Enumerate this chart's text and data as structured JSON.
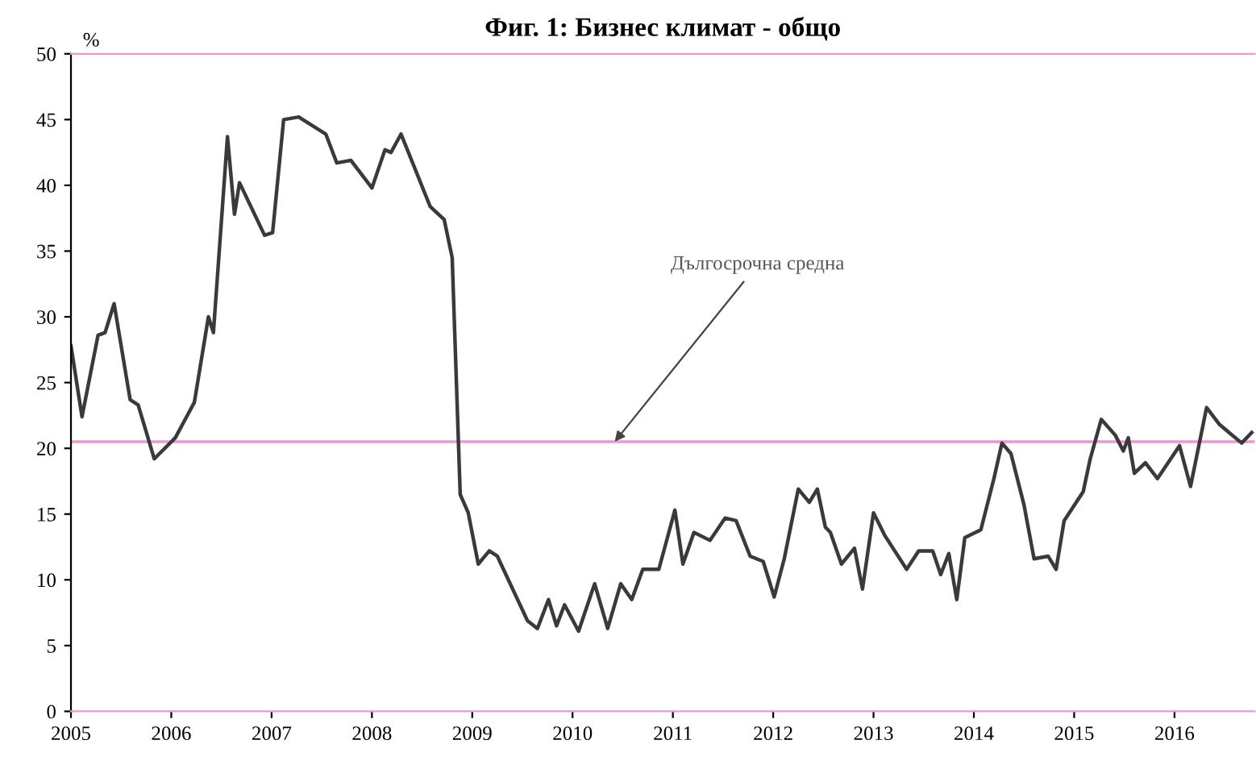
{
  "chart_data": {
    "type": "line",
    "title": "Фиг. 1: Бизнес климат - общо",
    "ylabel": "%",
    "x": [
      2005.0,
      2005.11,
      2005.27,
      2005.34,
      2005.43,
      2005.59,
      2005.67,
      2005.83,
      2006.04,
      2006.23,
      2006.37,
      2006.42,
      2006.56,
      2006.63,
      2006.68,
      2006.93,
      2007.01,
      2007.12,
      2007.27,
      2007.54,
      2007.65,
      2007.79,
      2008.0,
      2008.13,
      2008.19,
      2008.29,
      2008.58,
      2008.72,
      2008.8,
      2008.88,
      2008.96,
      2009.06,
      2009.17,
      2009.25,
      2009.55,
      2009.65,
      2009.76,
      2009.84,
      2009.92,
      2010.06,
      2010.22,
      2010.35,
      2010.48,
      2010.59,
      2010.7,
      2010.86,
      2011.02,
      2011.1,
      2011.21,
      2011.37,
      2011.52,
      2011.63,
      2011.77,
      2011.9,
      2012.01,
      2012.11,
      2012.25,
      2012.36,
      2012.44,
      2012.52,
      2012.57,
      2012.68,
      2012.81,
      2012.89,
      2013.0,
      2013.11,
      2013.33,
      2013.45,
      2013.59,
      2013.67,
      2013.75,
      2013.83,
      2013.91,
      2014.07,
      2014.2,
      2014.28,
      2014.37,
      2014.5,
      2014.6,
      2014.74,
      2014.82,
      2014.9,
      2015.09,
      2015.16,
      2015.27,
      2015.41,
      2015.49,
      2015.54,
      2015.6,
      2015.71,
      2015.83,
      2016.05,
      2016.16,
      2016.32,
      2016.45,
      2016.67,
      2016.77
    ],
    "series": [
      {
        "color": "#3a3a3a",
        "values": [
          27.8,
          22.4,
          28.6,
          28.8,
          31.0,
          23.7,
          23.3,
          19.2,
          20.8,
          23.5,
          30.0,
          28.8,
          43.7,
          37.8,
          40.2,
          36.2,
          36.4,
          45.0,
          45.2,
          43.9,
          41.7,
          41.9,
          39.8,
          42.7,
          42.5,
          43.9,
          38.4,
          37.4,
          34.5,
          16.5,
          15.1,
          11.2,
          12.2,
          11.8,
          6.9,
          6.3,
          8.5,
          6.5,
          8.1,
          6.1,
          9.7,
          6.3,
          9.7,
          8.5,
          10.8,
          10.8,
          15.3,
          11.2,
          13.6,
          13.0,
          14.7,
          14.5,
          11.8,
          11.4,
          8.7,
          11.6,
          16.9,
          15.9,
          16.9,
          14.0,
          13.6,
          11.2,
          12.4,
          9.3,
          15.1,
          13.4,
          10.8,
          12.2,
          12.2,
          10.4,
          12.0,
          8.5,
          13.2,
          13.8,
          17.7,
          20.4,
          19.6,
          15.7,
          11.6,
          11.8,
          10.8,
          14.5,
          16.7,
          19.2,
          22.2,
          21.0,
          19.8,
          20.8,
          18.1,
          18.9,
          17.7,
          20.2,
          17.1,
          23.1,
          21.8,
          20.4,
          21.2
        ]
      }
    ],
    "xlim": [
      2005,
      2016.8
    ],
    "xticks": [
      2005,
      2006,
      2007,
      2008,
      2009,
      2010,
      2011,
      2012,
      2013,
      2014,
      2015,
      2016
    ],
    "ylim": [
      0,
      50
    ],
    "yticks": [
      0,
      5,
      10,
      15,
      20,
      25,
      30,
      35,
      40,
      45,
      50
    ],
    "ref_lines": [
      {
        "axis": "y",
        "value": 20.5,
        "color": "#e89ad0",
        "line_style": "solid"
      }
    ],
    "annotations": [
      {
        "text": "Дългосрочна средна",
        "x": 2010.42,
        "y": 20.5
      }
    ],
    "grid": false,
    "legend": false,
    "marker": "none",
    "line_style": "solid"
  }
}
